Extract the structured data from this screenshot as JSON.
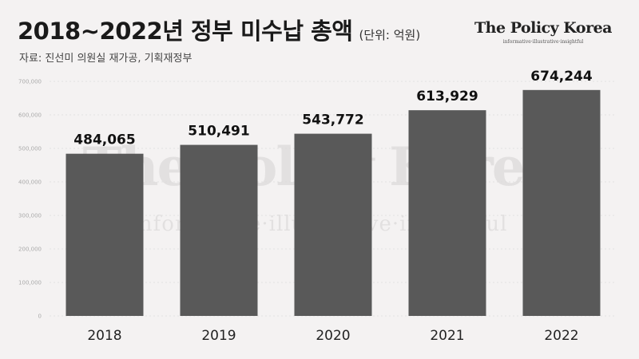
{
  "header": {
    "title": "2018~2022년 정부 미수납 총액",
    "unit": "(단위: 억원)",
    "source": "자료: 진선미 의원실 재가공, 기획재정부"
  },
  "brand": {
    "name": "The Policy Korea",
    "tagline": "informative·illustrative·insightful"
  },
  "watermark": {
    "name": "The Policy Korea",
    "tagline": "informative·illustrative·insightful"
  },
  "colors": {
    "bar": "#595959",
    "background": "#f4f2f2"
  },
  "chart_data": {
    "type": "bar",
    "categories": [
      "2018",
      "2019",
      "2020",
      "2021",
      "2022"
    ],
    "values": [
      484065,
      510491,
      543772,
      613929,
      674244
    ],
    "data_labels": [
      "484,065",
      "510,491",
      "543,772",
      "613,929",
      "674,244"
    ],
    "y_ticks": [
      "0",
      "100,000",
      "200,000",
      "300,000",
      "400,000",
      "500,000",
      "600,000",
      "700,000"
    ],
    "ylim": [
      0,
      700000
    ],
    "grid": true,
    "legend": "none"
  }
}
